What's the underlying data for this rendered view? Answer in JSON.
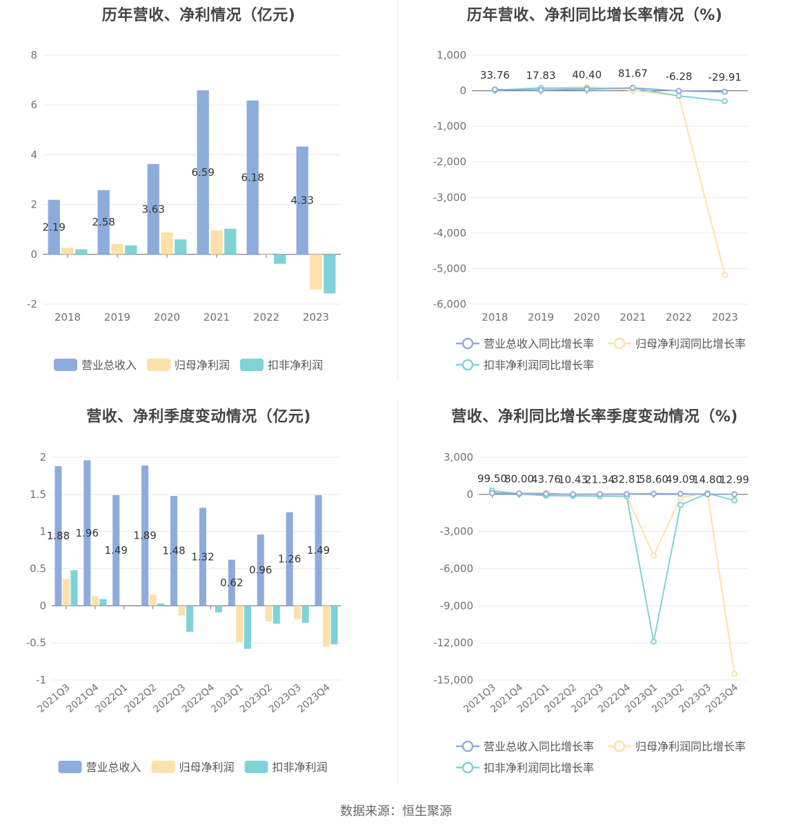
{
  "footer": {
    "source": "数据来源：恒生聚源"
  },
  "colors": {
    "revenue": "#8eacdb",
    "parent_profit": "#ffe0a8",
    "deducted_profit": "#7dd3d8",
    "grid": "#e6e9f0",
    "axis": "#6e7079",
    "tick": "#6e7079"
  },
  "chart_data": [
    {
      "type": "bar",
      "title": "历年营收、净利情况（亿元)",
      "categories": [
        "2018",
        "2019",
        "2020",
        "2021",
        "2022",
        "2023"
      ],
      "yticks": [
        "8",
        "6",
        "4",
        "2",
        "0",
        "-2"
      ],
      "ylim": [
        -2,
        8
      ],
      "series": [
        {
          "name": "营业总收入",
          "values": [
            2.19,
            2.58,
            3.63,
            6.59,
            6.18,
            4.33
          ],
          "labels": [
            "2.19",
            "2.58",
            "3.63",
            "6.59",
            "6.18",
            "4.33"
          ]
        },
        {
          "name": "归母净利润",
          "values": [
            0.27,
            0.42,
            0.88,
            0.96,
            -0.02,
            -1.42
          ]
        },
        {
          "name": "扣非净利润",
          "values": [
            0.2,
            0.36,
            0.6,
            1.03,
            -0.38,
            -1.57
          ]
        }
      ],
      "legend": "bottom"
    },
    {
      "type": "line",
      "title": "历年营收、净利同比增长率情况（%)",
      "categories": [
        "2018",
        "2019",
        "2020",
        "2021",
        "2022",
        "2023"
      ],
      "yticks": [
        "1,000",
        "0",
        "-1,000",
        "-2,000",
        "-3,000",
        "-4,000",
        "-5,000",
        "-6,000"
      ],
      "ylim": [
        -6000,
        1000
      ],
      "series": [
        {
          "name": "营业总收入同比增长率",
          "values": [
            33.76,
            17.83,
            40.4,
            81.67,
            -6.28,
            -29.91
          ],
          "labels": [
            "33.76",
            "17.83",
            "40.40",
            "81.67",
            "-6.28",
            "-29.91"
          ]
        },
        {
          "name": "归母净利润同比增长率",
          "values": [
            20,
            60,
            110,
            10,
            -150,
            -5180
          ]
        },
        {
          "name": "扣非净利润同比增长率",
          "values": [
            15,
            80,
            65,
            75,
            -145,
            -290
          ]
        }
      ],
      "legend": "bottom"
    },
    {
      "type": "bar",
      "title": "营收、净利季度变动情况（亿元)",
      "categories": [
        "2021Q3",
        "2021Q4",
        "2022Q1",
        "2022Q2",
        "2022Q3",
        "2022Q4",
        "2023Q1",
        "2023Q2",
        "2023Q3",
        "2023Q4"
      ],
      "yticks": [
        "2",
        "1.5",
        "1",
        "0.5",
        "0",
        "-0.5",
        "-1"
      ],
      "ylim": [
        -1,
        2
      ],
      "series": [
        {
          "name": "营业总收入",
          "values": [
            1.88,
            1.96,
            1.49,
            1.89,
            1.48,
            1.32,
            0.62,
            0.96,
            1.26,
            1.49
          ],
          "labels": [
            "1.88",
            "1.96",
            "1.49",
            "1.89",
            "1.48",
            "1.32",
            "0.62",
            "0.96",
            "1.26",
            "1.49"
          ]
        },
        {
          "name": "归母净利润",
          "values": [
            0.36,
            0.13,
            0.0,
            0.15,
            -0.13,
            0.0,
            -0.49,
            -0.21,
            -0.18,
            -0.55
          ]
        },
        {
          "name": "扣非净利润",
          "values": [
            0.48,
            0.09,
            0.0,
            0.03,
            -0.35,
            -0.09,
            -0.58,
            -0.24,
            -0.23,
            -0.52
          ]
        }
      ],
      "legend": "bottom"
    },
    {
      "type": "line",
      "title": "营收、净利同比增长率季度变动情况（%)",
      "categories": [
        "2021Q3",
        "2021Q4",
        "2022Q1",
        "2022Q2",
        "2022Q3",
        "2022Q4",
        "2023Q1",
        "2023Q2",
        "2023Q3",
        "2023Q4"
      ],
      "yticks": [
        "3,000",
        "0",
        "-3,000",
        "-6,000",
        "-9,000",
        "-12,000",
        "-15,000"
      ],
      "ylim": [
        -15000,
        3000
      ],
      "series": [
        {
          "name": "营业总收入同比增长率",
          "values": [
            99.5,
            80.0,
            43.76,
            10.43,
            21.34,
            32.81,
            58.6,
            49.09,
            14.8,
            12.99
          ],
          "labels": [
            "99.50",
            "80.00",
            "43.76",
            "10.43",
            "21.34",
            "32.81",
            "58.60",
            "49.09",
            "14.80",
            "12.99"
          ]
        },
        {
          "name": "归母净利润同比增长率",
          "values": [
            150,
            80,
            120,
            -50,
            -100,
            -140,
            -4950,
            -250,
            100,
            -14500
          ]
        },
        {
          "name": "扣非净利润同比增长率",
          "values": [
            310,
            30,
            -100,
            -120,
            -150,
            -160,
            -11900,
            -850,
            80,
            -480
          ]
        }
      ],
      "legend": "bottom"
    }
  ]
}
